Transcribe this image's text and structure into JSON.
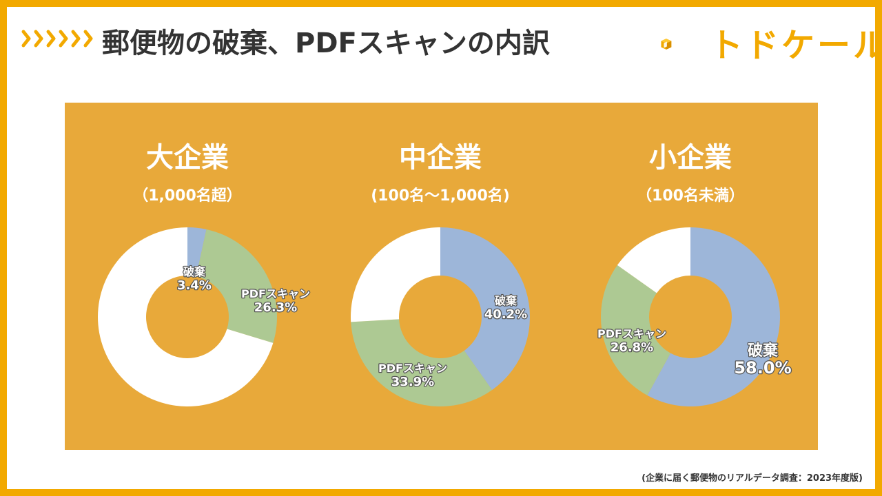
{
  "header": {
    "title": "郵便物の破棄、PDFスキャンの内訳",
    "logo_text": "トドケール"
  },
  "colors": {
    "frame": "#f2a900",
    "panel": "#e8a93a",
    "discard": "#9db6d9",
    "scan": "#adc993",
    "other": "#ffffff"
  },
  "chart_data": [
    {
      "type": "pie",
      "title": "大企業",
      "subtitle": "（1,000名超）",
      "slices": [
        {
          "label": "破棄",
          "value": 3.4,
          "display": "3.4%",
          "color": "#9db6d9",
          "labeled": true
        },
        {
          "label": "PDFスキャン",
          "value": 26.3,
          "display": "26.3%",
          "color": "#adc993",
          "labeled": true
        },
        {
          "label": "",
          "value": 70.3,
          "display": "",
          "color": "#ffffff",
          "labeled": false
        }
      ]
    },
    {
      "type": "pie",
      "title": "中企業",
      "subtitle": "(100名〜1,000名)",
      "slices": [
        {
          "label": "破棄",
          "value": 40.2,
          "display": "40.2%",
          "color": "#9db6d9",
          "labeled": true
        },
        {
          "label": "PDFスキャン",
          "value": 33.9,
          "display": "33.9%",
          "color": "#adc993",
          "labeled": true
        },
        {
          "label": "",
          "value": 25.9,
          "display": "",
          "color": "#ffffff",
          "labeled": false
        }
      ]
    },
    {
      "type": "pie",
      "title": "小企業",
      "subtitle": "（100名未満）",
      "slices": [
        {
          "label": "破棄",
          "value": 58.0,
          "display": "58.0%",
          "color": "#9db6d9",
          "labeled": true
        },
        {
          "label": "PDFスキャン",
          "value": 26.8,
          "display": "26.8%",
          "color": "#adc993",
          "labeled": true
        },
        {
          "label": "",
          "value": 15.2,
          "display": "",
          "color": "#ffffff",
          "labeled": false
        }
      ]
    }
  ],
  "footer": {
    "source": "(企業に届く郵便物のリアルデータ調査：2023年度版)"
  }
}
